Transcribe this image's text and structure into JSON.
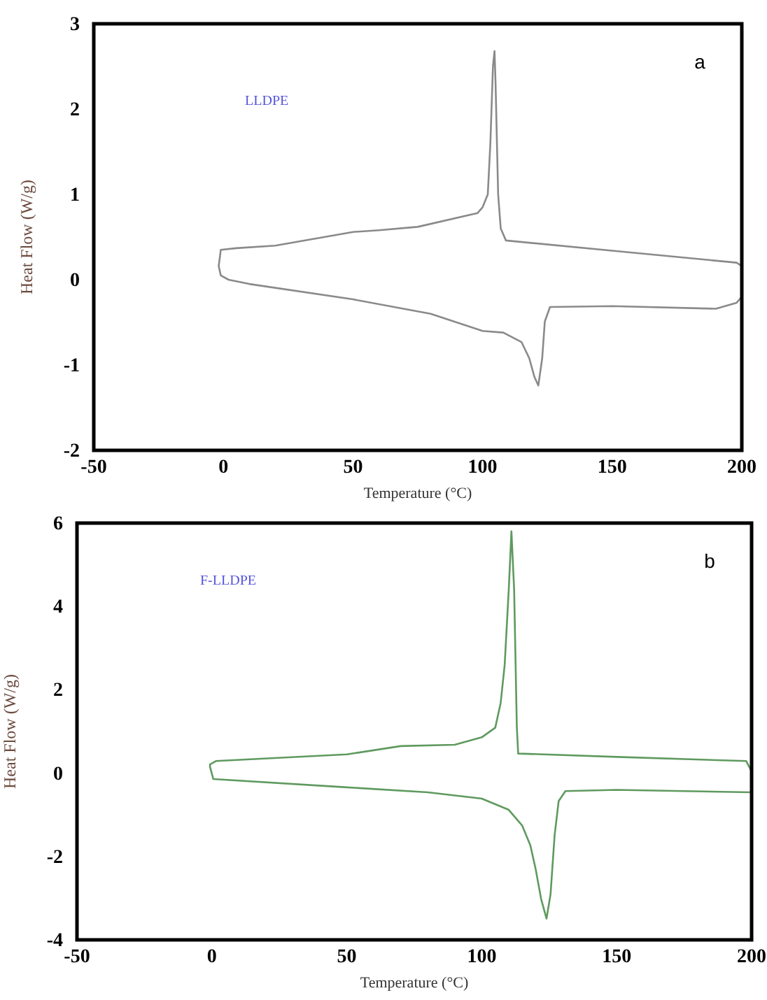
{
  "chart_data": [
    {
      "type": "line",
      "xlabel": "Temperature (°C)",
      "ylabel": "Heat Flow (W/g)",
      "annotations": [
        "a",
        "LLDPE"
      ],
      "xlim": [
        -50,
        200
      ],
      "ylim": [
        -2,
        3
      ],
      "xticks": [
        -50,
        0,
        50,
        100,
        150,
        200
      ],
      "yticks": [
        -2,
        -1,
        0,
        1,
        2,
        3
      ],
      "grid": false,
      "line_style": "solid",
      "series": [
        {
          "color": "#8a8a8a",
          "x": [
            200,
            198,
            150,
            109,
            107,
            106,
            105,
            104.6,
            104,
            103,
            102,
            100,
            98,
            75,
            60,
            50,
            20,
            5,
            -1,
            -1.8,
            -1,
            2,
            10,
            50,
            80,
            100,
            108,
            115,
            118,
            120,
            121.5,
            123,
            124,
            126,
            150,
            190,
            198,
            200
          ],
          "values": [
            0.16,
            0.2,
            0.34,
            0.46,
            0.6,
            1.0,
            2.3,
            2.68,
            2.5,
            1.6,
            1.0,
            0.85,
            0.78,
            0.62,
            0.58,
            0.56,
            0.4,
            0.37,
            0.35,
            0.16,
            0.05,
            0,
            -0.05,
            -0.23,
            -0.4,
            -0.6,
            -0.62,
            -0.73,
            -0.92,
            -1.14,
            -1.24,
            -0.92,
            -0.49,
            -0.32,
            -0.31,
            -0.34,
            -0.27,
            -0.2
          ]
        }
      ]
    },
    {
      "type": "line",
      "xlabel": "Temperature (°C)",
      "ylabel": "Heat Flow (W/g)",
      "annotations": [
        "b",
        "F-LLDPE"
      ],
      "xlim": [
        -50,
        200
      ],
      "ylim": [
        -4,
        6
      ],
      "xticks": [
        -50,
        0,
        50,
        100,
        150,
        200
      ],
      "yticks": [
        -4,
        -2,
        0,
        2,
        4,
        6
      ],
      "grid": false,
      "line_style": "solid",
      "series": [
        {
          "color": "#5f9a5f",
          "x": [
            200,
            198,
            150,
            113.5,
            113,
            112,
            111,
            110,
            108.5,
            107,
            105,
            100,
            90,
            70,
            50,
            1.5,
            -0.7,
            -0.7,
            0.5,
            50,
            80,
            100,
            110,
            115,
            118,
            120,
            122,
            124,
            125.5,
            127,
            128.5,
            131,
            150,
            200
          ],
          "values": [
            0.04,
            0.29,
            0.39,
            0.47,
            1.1,
            4.4,
            5.8,
            4.4,
            2.6,
            1.68,
            1.09,
            0.86,
            0.68,
            0.65,
            0.45,
            0.29,
            0.21,
            0.15,
            -0.14,
            -0.34,
            -0.46,
            -0.61,
            -0.88,
            -1.26,
            -1.73,
            -2.31,
            -3.02,
            -3.49,
            -2.9,
            -1.49,
            -0.67,
            -0.43,
            -0.4,
            -0.46
          ]
        }
      ]
    }
  ]
}
